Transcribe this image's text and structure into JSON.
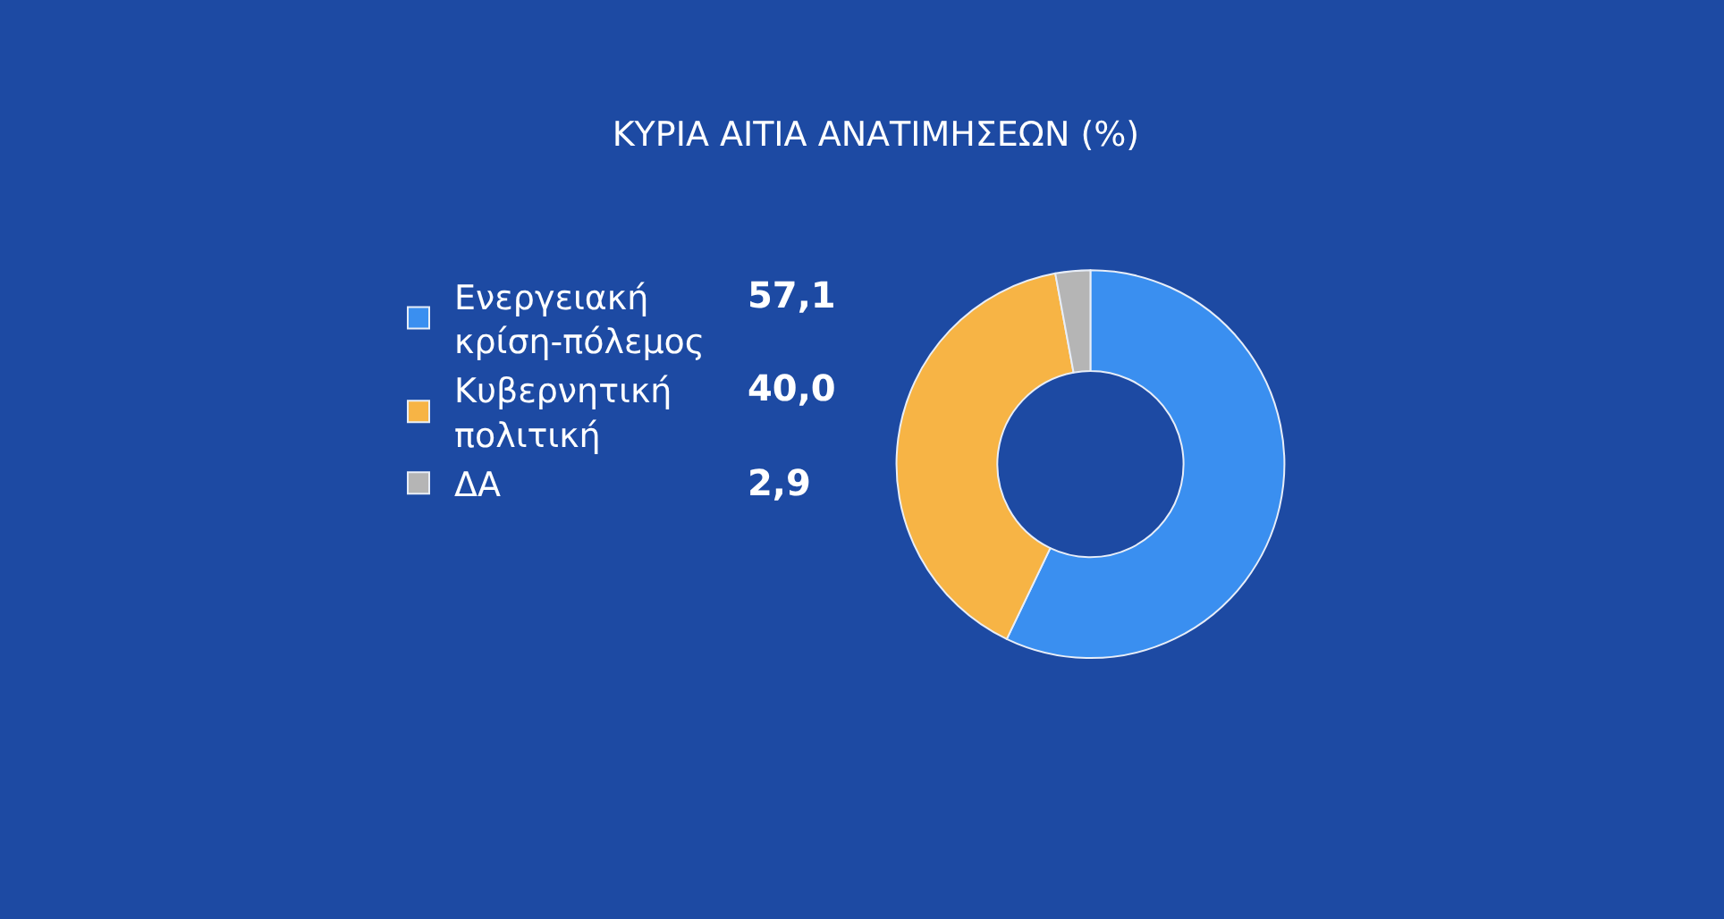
{
  "chart_data": {
    "type": "donut",
    "title": "ΚΥΡΙΑ ΑΙΤΙΑ ΑΝΑΤΙΜΗΣΕΩΝ (%)",
    "categories": [
      "Ενεργειακή κρίση-πόλεμος",
      "Κυβερνητική πολιτική",
      "ΔΑ"
    ],
    "values": [
      57.1,
      40.0,
      2.9
    ],
    "value_labels": [
      "57,1",
      "40,0",
      "2,9"
    ],
    "colors": [
      "#3a8ff0",
      "#f7b445",
      "#b5b5b5"
    ],
    "legend": "left"
  }
}
